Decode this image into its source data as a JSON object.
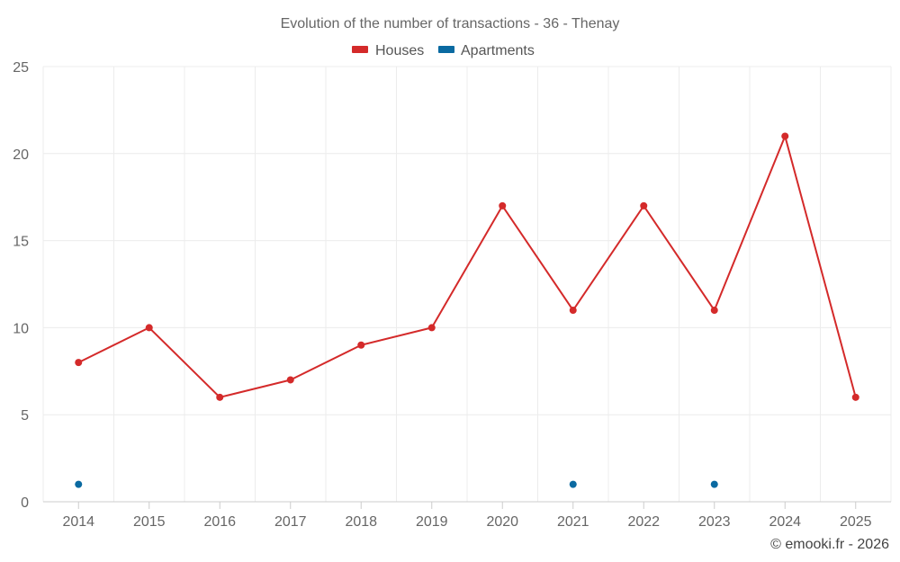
{
  "chart_data": {
    "type": "line",
    "title": "Evolution of the number of transactions - 36 - Thenay",
    "categories": [
      "2014",
      "2015",
      "2016",
      "2017",
      "2018",
      "2019",
      "2020",
      "2021",
      "2022",
      "2023",
      "2024",
      "2025"
    ],
    "series": [
      {
        "name": "Houses",
        "color": "#d42a2a",
        "values": [
          8,
          10,
          6,
          7,
          9,
          10,
          17,
          11,
          17,
          11,
          21,
          6
        ]
      },
      {
        "name": "Apartments",
        "color": "#0a6aa1",
        "values": [
          1,
          null,
          null,
          null,
          null,
          null,
          null,
          1,
          null,
          1,
          null,
          null
        ]
      }
    ],
    "ylim": [
      0,
      25
    ],
    "yticks": [
      0,
      5,
      10,
      15,
      20,
      25
    ],
    "xlabel": "",
    "ylabel": "",
    "grid": true,
    "legend_position": "top-center",
    "credit": "© emooki.fr - 2026"
  }
}
